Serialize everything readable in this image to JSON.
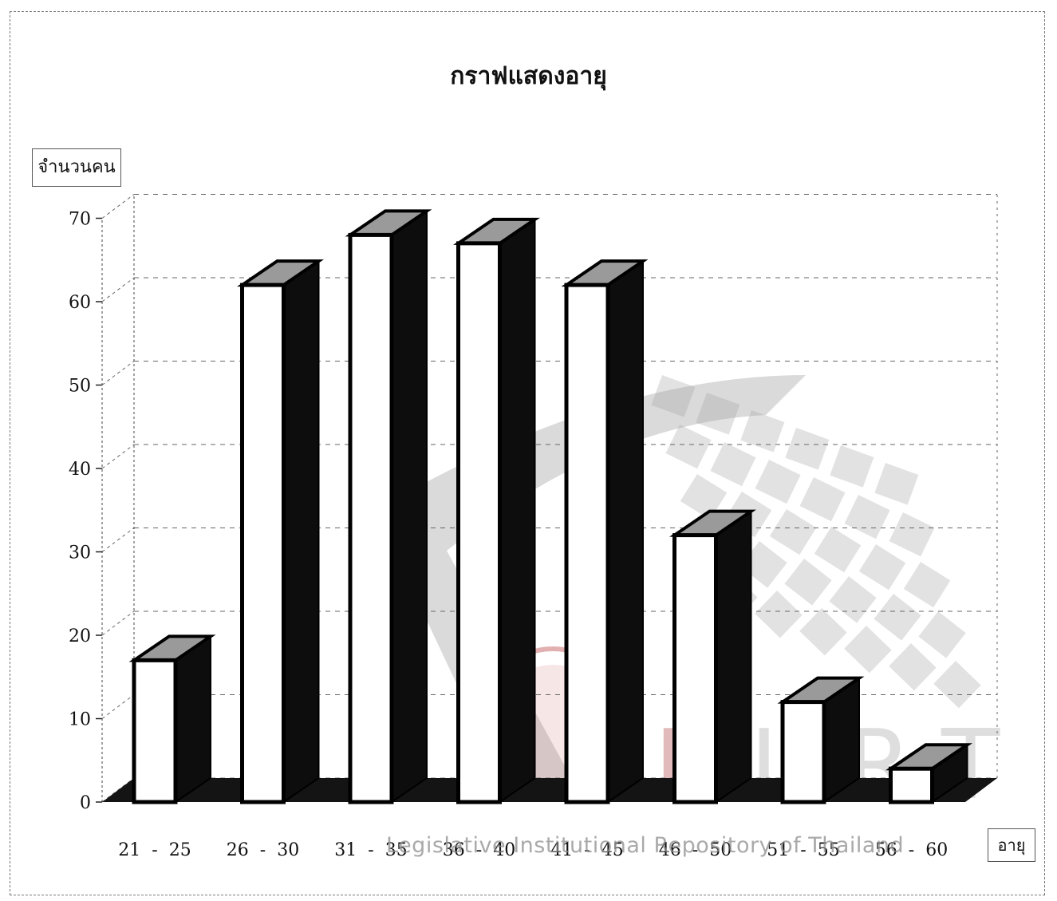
{
  "chart_data": {
    "type": "bar",
    "title": "กราฟแสดงอายุ",
    "ylabel": "จำนวนคน",
    "xlabel": "อายุ",
    "categories": [
      "21 - 25",
      "26 - 30",
      "31 - 35",
      "36 - 40",
      "41 - 45",
      "46 - 50",
      "51 - 55",
      "56 - 60"
    ],
    "values": [
      17,
      62,
      68,
      67,
      62,
      32,
      12,
      4
    ],
    "ylim": [
      0,
      70
    ],
    "yticks": [
      0,
      10,
      20,
      30,
      40,
      50,
      60,
      70
    ],
    "grid": true,
    "style": "3d"
  },
  "colors": {
    "bar_front": "#ffffff",
    "bar_side": "#0d0d0d",
    "bar_top": "#9a9a9a",
    "floor": "#141414",
    "grid": "#666666"
  },
  "watermark": {
    "text": "Legislative Institutional Repository of Thailand",
    "logo_letters": "LIRT"
  }
}
